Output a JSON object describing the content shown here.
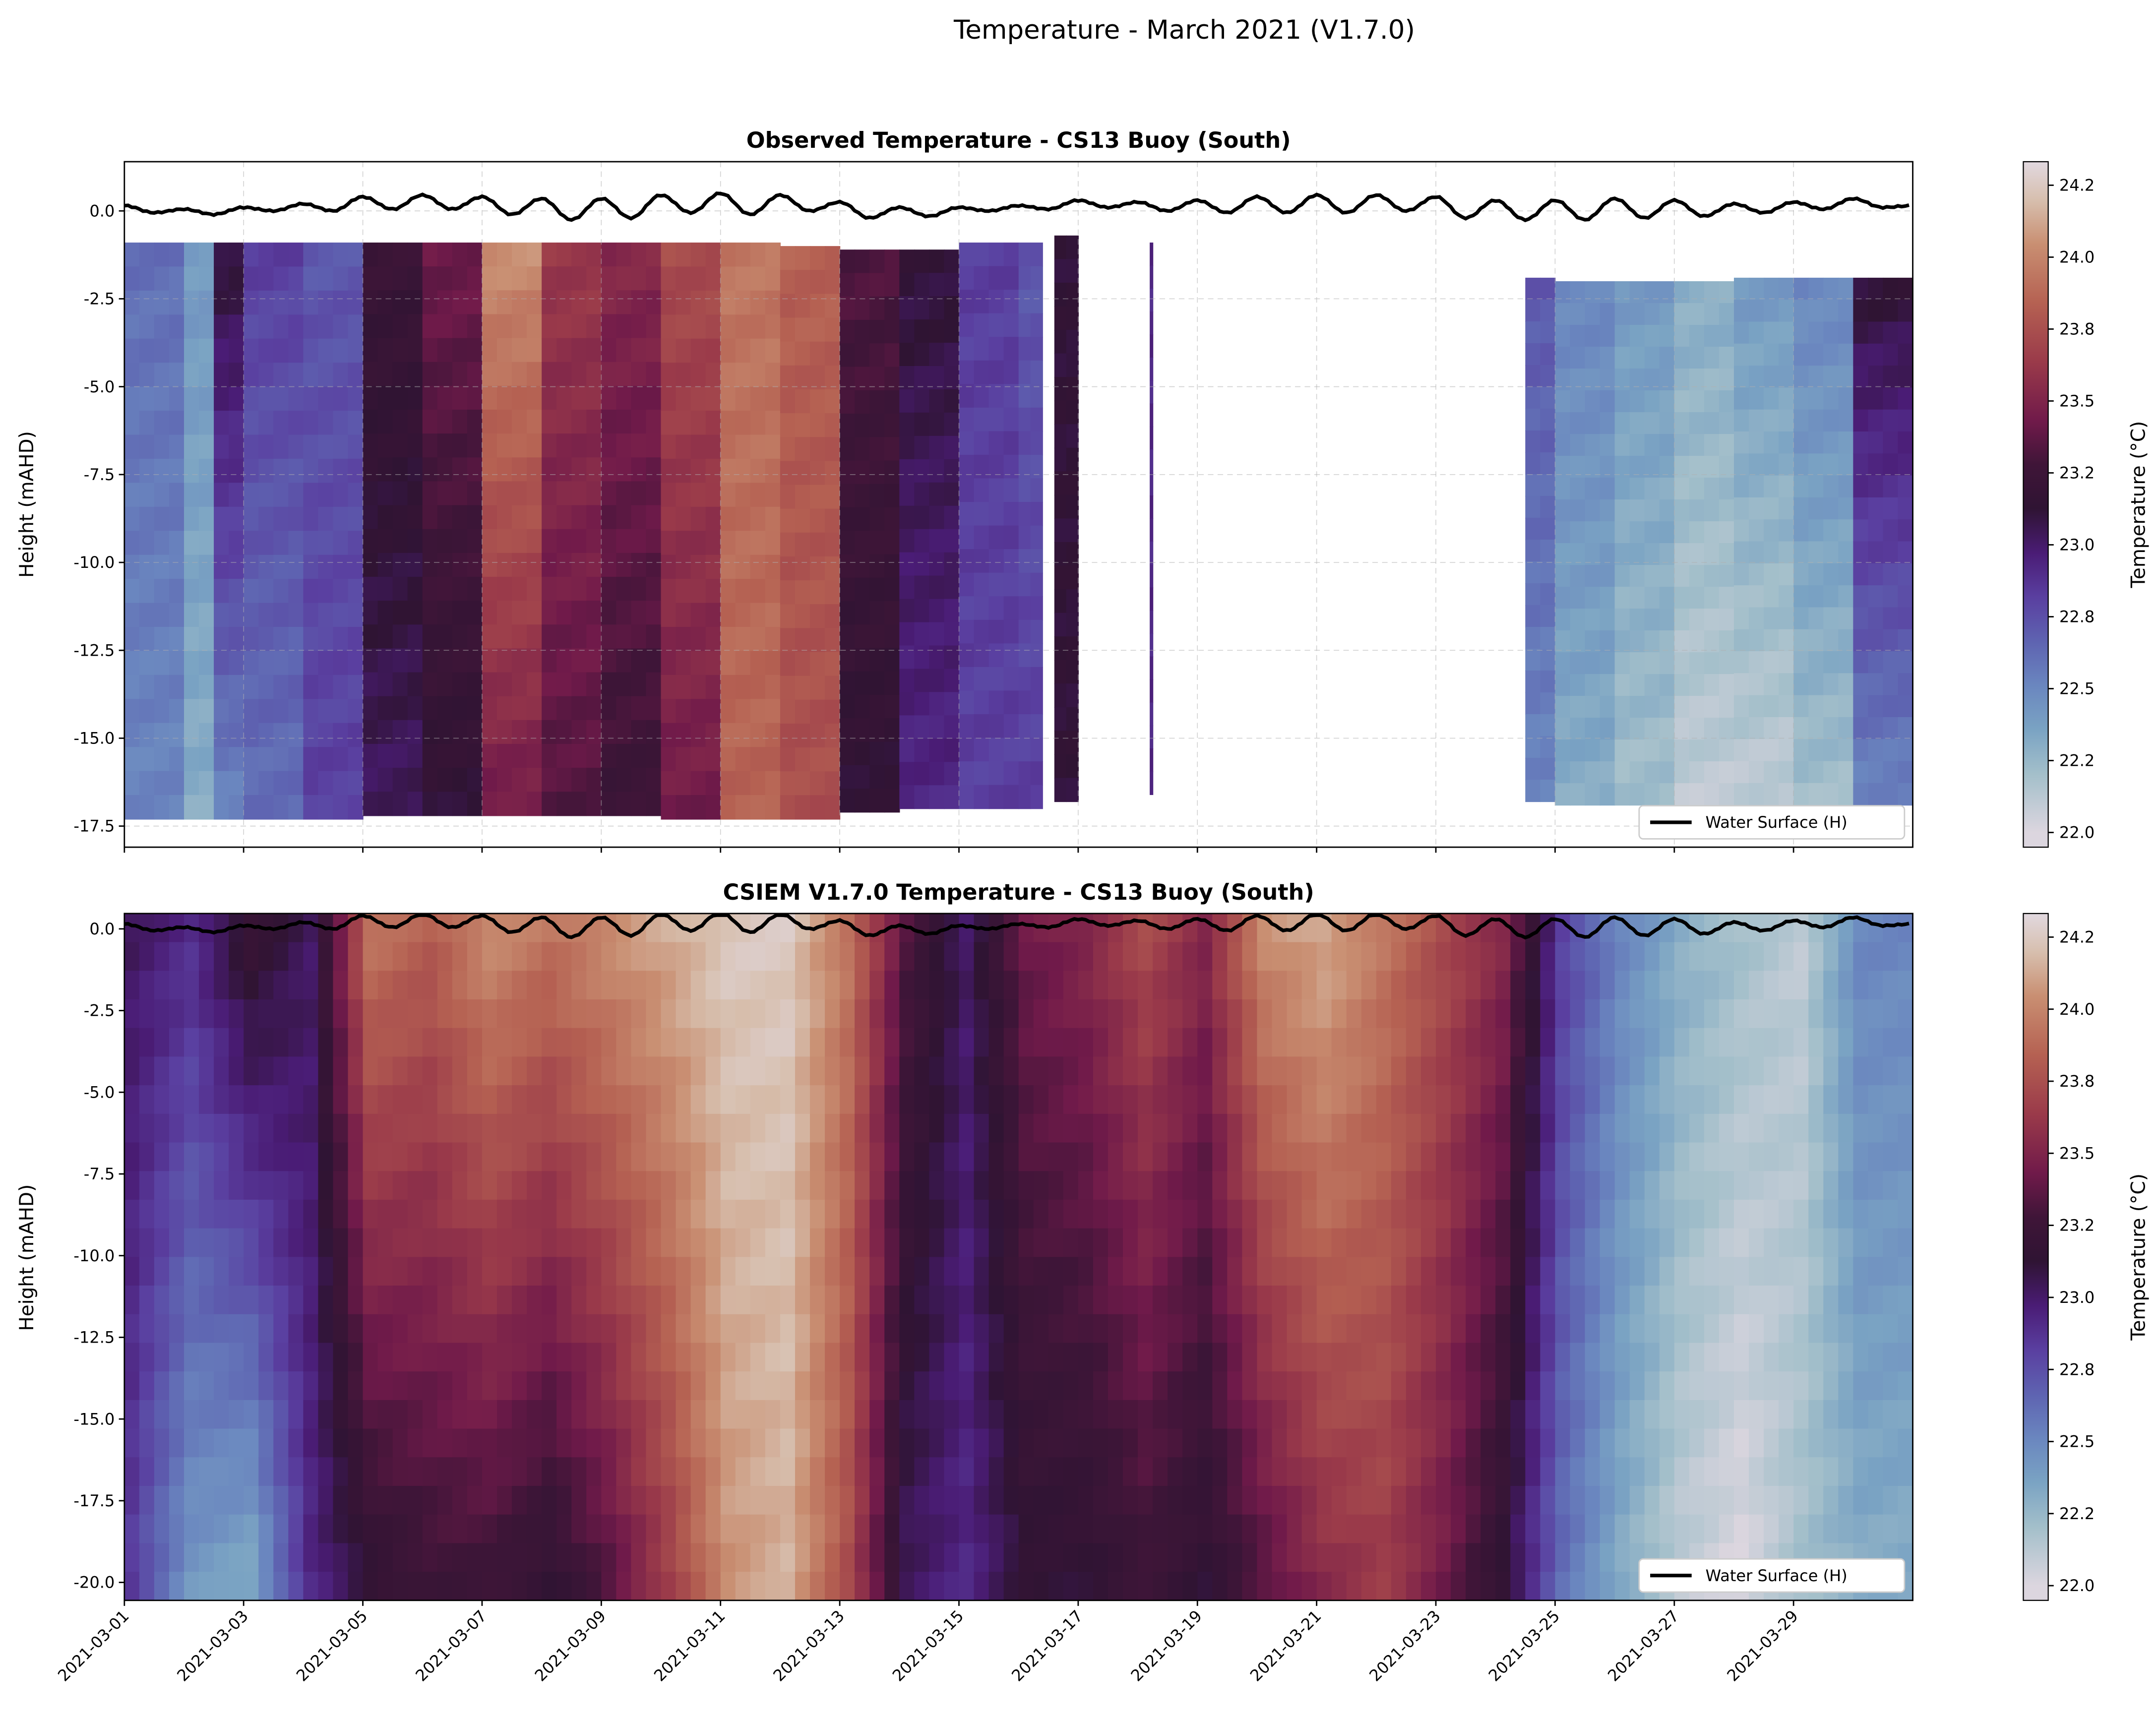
{
  "suptitle": "Temperature - March 2021 (V1.7.0)",
  "colormap_stops": [
    [
      22.0,
      "#dcd6df"
    ],
    [
      22.2,
      "#a3bfca"
    ],
    [
      22.35,
      "#7aa3c3"
    ],
    [
      22.5,
      "#6a86bf"
    ],
    [
      22.65,
      "#5e63b1"
    ],
    [
      22.8,
      "#5a3fa0"
    ],
    [
      22.95,
      "#4a1c75"
    ],
    [
      23.1,
      "#2f1433"
    ],
    [
      23.25,
      "#3f1538"
    ],
    [
      23.4,
      "#701a4a"
    ],
    [
      23.6,
      "#9a3a4a"
    ],
    [
      23.8,
      "#b56152"
    ],
    [
      24.0,
      "#c98f72"
    ],
    [
      24.15,
      "#d7bfae"
    ],
    [
      24.28,
      "#e1d8df"
    ]
  ],
  "chart_data": [
    {
      "type": "heatmap",
      "title": "Observed Temperature - CS13 Buoy (South)",
      "xlabel": "",
      "ylabel": "Height (mAHD)",
      "xlim": [
        "2021-03-01",
        "2021-03-31"
      ],
      "ylim": [
        -18.1,
        1.4
      ],
      "yticks": [
        "0.0",
        "-2.5",
        "-5.0",
        "-7.5",
        "-10.0",
        "-12.5",
        "-15.0",
        "-17.5"
      ],
      "ytick_values": [
        0,
        -2.5,
        -5,
        -7.5,
        -10,
        -12.5,
        -15,
        -17.5
      ],
      "grid": true,
      "colorbar": {
        "label": "Temperature (°C)",
        "range": [
          21.95,
          24.28
        ],
        "ticks": [
          "22.0",
          "22.2",
          "22.5",
          "22.8",
          "23.0",
          "23.2",
          "23.5",
          "23.8",
          "24.0",
          "24.2"
        ]
      },
      "legend": {
        "label": "Water Surface (H)",
        "placement": "lower right"
      },
      "profiles": [
        {
          "start": "2021-03-01",
          "end": "2021-03-02",
          "top": -0.9,
          "bottom": -17.3,
          "surface_temp": 22.6,
          "bottom_temp": 22.5
        },
        {
          "start": "2021-03-02",
          "end": "2021-03-02.5",
          "top": -0.9,
          "bottom": -17.3,
          "surface_temp": 22.4,
          "bottom_temp": 22.3
        },
        {
          "start": "2021-03-02.5",
          "end": "2021-03-03",
          "top": -0.9,
          "bottom": -17.3,
          "surface_temp": 23.1,
          "bottom_temp": 22.5
        },
        {
          "start": "2021-03-03",
          "end": "2021-03-04",
          "top": -0.9,
          "bottom": -17.3,
          "surface_temp": 22.8,
          "bottom_temp": 22.6
        },
        {
          "start": "2021-03-04",
          "end": "2021-03-05",
          "top": -0.9,
          "bottom": -17.3,
          "surface_temp": 22.7,
          "bottom_temp": 22.8
        },
        {
          "start": "2021-03-05",
          "end": "2021-03-06",
          "top": -0.9,
          "bottom": -17.2,
          "surface_temp": 23.2,
          "bottom_temp": 23.0
        },
        {
          "start": "2021-03-06",
          "end": "2021-03-07",
          "top": -0.9,
          "bottom": -17.2,
          "surface_temp": 23.4,
          "bottom_temp": 23.1
        },
        {
          "start": "2021-03-07",
          "end": "2021-03-08",
          "top": -0.9,
          "bottom": -17.2,
          "surface_temp": 24.0,
          "bottom_temp": 23.4
        },
        {
          "start": "2021-03-08",
          "end": "2021-03-09",
          "top": -0.9,
          "bottom": -17.2,
          "surface_temp": 23.6,
          "bottom_temp": 23.3
        },
        {
          "start": "2021-03-09",
          "end": "2021-03-10",
          "top": -0.9,
          "bottom": -17.2,
          "surface_temp": 23.5,
          "bottom_temp": 23.2
        },
        {
          "start": "2021-03-10",
          "end": "2021-03-11",
          "top": -0.9,
          "bottom": -17.3,
          "surface_temp": 23.7,
          "bottom_temp": 23.4
        },
        {
          "start": "2021-03-11",
          "end": "2021-03-12",
          "top": -0.9,
          "bottom": -17.3,
          "surface_temp": 23.9,
          "bottom_temp": 23.8
        },
        {
          "start": "2021-03-12",
          "end": "2021-03-13",
          "top": -1.0,
          "bottom": -17.3,
          "surface_temp": 23.8,
          "bottom_temp": 23.7
        },
        {
          "start": "2021-03-13",
          "end": "2021-03-14",
          "top": -1.1,
          "bottom": -17.1,
          "surface_temp": 23.3,
          "bottom_temp": 23.1
        },
        {
          "start": "2021-03-14",
          "end": "2021-03-15",
          "top": -1.1,
          "bottom": -17.0,
          "surface_temp": 23.1,
          "bottom_temp": 22.9
        },
        {
          "start": "2021-03-15",
          "end": "2021-03-16",
          "top": -0.9,
          "bottom": -17.0,
          "surface_temp": 22.8,
          "bottom_temp": 22.8
        },
        {
          "start": "2021-03-16",
          "end": "2021-03-16.4",
          "top": -0.9,
          "bottom": -17.0,
          "surface_temp": 22.7,
          "bottom_temp": 22.8
        },
        {
          "start": "2021-03-16.6",
          "end": "2021-03-17",
          "top": -0.7,
          "bottom": -16.8,
          "surface_temp": 23.1,
          "bottom_temp": 23.1
        },
        {
          "start": "2021-03-18.2",
          "end": "2021-03-18.25",
          "top": -0.9,
          "bottom": -16.6,
          "surface_temp": 22.9,
          "bottom_temp": 22.9
        },
        {
          "start": "2021-03-24.5",
          "end": "2021-03-25",
          "top": -1.9,
          "bottom": -16.8,
          "surface_temp": 22.7,
          "bottom_temp": 22.5
        },
        {
          "start": "2021-03-25",
          "end": "2021-03-26",
          "top": -2.0,
          "bottom": -16.9,
          "surface_temp": 22.5,
          "bottom_temp": 22.3
        },
        {
          "start": "2021-03-26",
          "end": "2021-03-27",
          "top": -2.0,
          "bottom": -16.9,
          "surface_temp": 22.4,
          "bottom_temp": 22.2
        },
        {
          "start": "2021-03-27",
          "end": "2021-03-28",
          "top": -2.0,
          "bottom": -16.9,
          "surface_temp": 22.3,
          "bottom_temp": 22.1
        },
        {
          "start": "2021-03-28",
          "end": "2021-03-29",
          "top": -1.9,
          "bottom": -16.9,
          "surface_temp": 22.4,
          "bottom_temp": 22.1
        },
        {
          "start": "2021-03-29",
          "end": "2021-03-30",
          "top": -1.9,
          "bottom": -16.9,
          "surface_temp": 22.5,
          "bottom_temp": 22.2
        },
        {
          "start": "2021-03-30",
          "end": "2021-03-31",
          "top": -1.9,
          "bottom": -16.9,
          "surface_temp": 23.1,
          "bottom_temp": 22.5
        }
      ]
    },
    {
      "type": "heatmap",
      "title": "CSIEM V1.7.0 Temperature - CS13 Buoy (South)",
      "xlabel": "",
      "ylabel": "Height (mAHD)",
      "xlim": [
        "2021-03-01",
        "2021-03-31"
      ],
      "ylim": [
        -20.55,
        0.47
      ],
      "yticks": [
        "0.0",
        "-2.5",
        "-5.0",
        "-7.5",
        "-10.0",
        "-12.5",
        "-15.0",
        "-17.5",
        "-20.0"
      ],
      "ytick_values": [
        0,
        -2.5,
        -5,
        -7.5,
        -10,
        -12.5,
        -15,
        -17.5,
        -20
      ],
      "xticks": [
        "2021-03-01",
        "2021-03-03",
        "2021-03-05",
        "2021-03-07",
        "2021-03-09",
        "2021-03-11",
        "2021-03-13",
        "2021-03-15",
        "2021-03-17",
        "2021-03-19",
        "2021-03-21",
        "2021-03-23",
        "2021-03-25",
        "2021-03-27",
        "2021-03-29"
      ],
      "grid": false,
      "colorbar": {
        "label": "Temperature (°C)",
        "range": [
          21.95,
          24.28
        ],
        "ticks": [
          "22.0",
          "22.2",
          "22.5",
          "22.8",
          "23.0",
          "23.2",
          "23.5",
          "23.8",
          "24.0",
          "24.2"
        ]
      },
      "legend": {
        "label": "Water Surface (H)",
        "placement": "lower right"
      },
      "daily_surface_temp": [
        23.0,
        22.9,
        23.2,
        23.0,
        23.9,
        23.8,
        24.0,
        23.9,
        24.0,
        24.1,
        24.2,
        24.2,
        23.9,
        23.3,
        23.0,
        23.4,
        23.5,
        23.7,
        23.5,
        24.0,
        24.1,
        23.9,
        23.7,
        23.5,
        22.8,
        22.5,
        22.3,
        22.2,
        22.1,
        22.5
      ],
      "daily_bottom_temp": [
        22.8,
        22.4,
        22.3,
        22.9,
        23.1,
        23.2,
        23.2,
        23.1,
        23.3,
        23.6,
        24.0,
        24.1,
        23.7,
        23.0,
        22.9,
        23.1,
        23.1,
        23.2,
        23.1,
        23.3,
        23.5,
        23.6,
        23.4,
        23.1,
        22.6,
        22.3,
        22.1,
        22.0,
        22.2,
        22.3
      ]
    }
  ],
  "water_surface_12h": [
    0.15,
    -0.05,
    0.05,
    -0.1,
    0.1,
    0.0,
    0.2,
    0.0,
    0.4,
    0.05,
    0.45,
    0.05,
    0.4,
    -0.1,
    0.35,
    -0.25,
    0.35,
    -0.2,
    0.45,
    -0.05,
    0.5,
    -0.1,
    0.45,
    0.0,
    0.25,
    -0.2,
    0.1,
    -0.15,
    0.1,
    0.0,
    0.15,
    0.05,
    0.3,
    0.1,
    0.25,
    0.0,
    0.3,
    -0.05,
    0.4,
    -0.05,
    0.45,
    -0.05,
    0.45,
    0.0,
    0.4,
    -0.2,
    0.3,
    -0.25,
    0.3,
    -0.25,
    0.35,
    -0.2,
    0.3,
    -0.15,
    0.2,
    -0.05,
    0.25,
    0.05,
    0.35,
    0.1,
    0.15
  ]
}
